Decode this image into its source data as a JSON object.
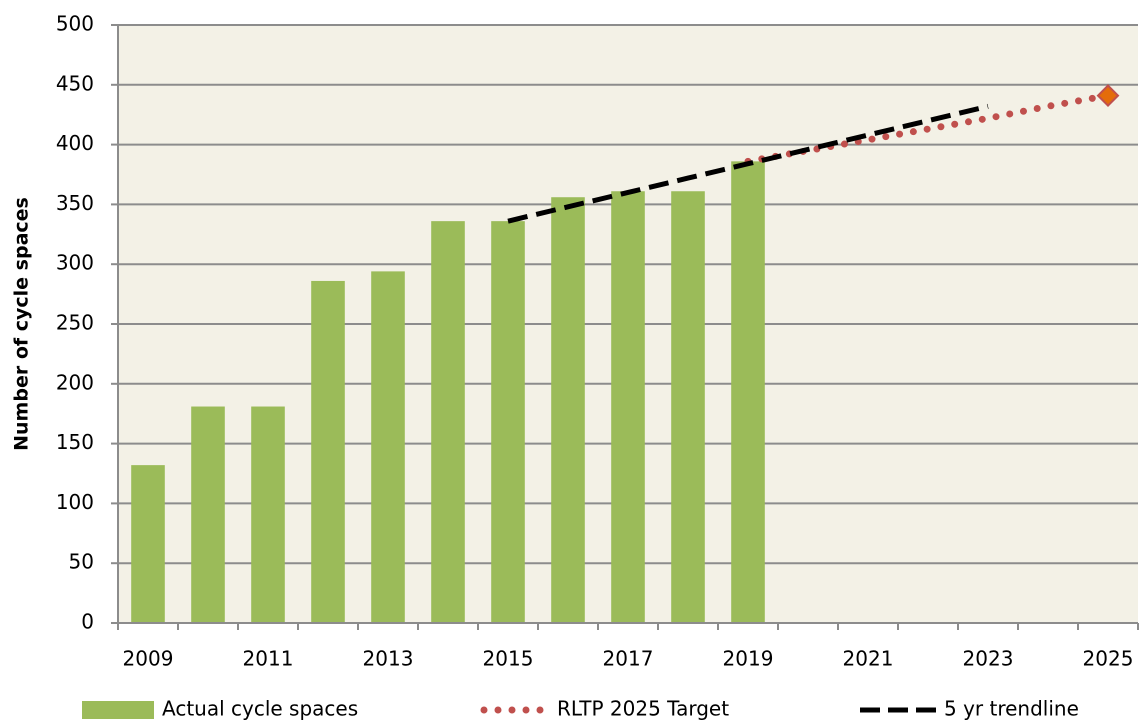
{
  "chart_data": {
    "type": "bar",
    "y_label": "Number of cycle spaces",
    "categories": [
      "2009",
      null,
      "2011",
      null,
      "2013",
      null,
      "2015",
      null,
      "2017",
      null,
      "2019",
      null,
      "2021",
      null,
      "2023",
      null,
      "2025"
    ],
    "series": [
      {
        "name": "Actual cycle spaces",
        "type": "bar",
        "color": "#9bbb59",
        "values": [
          132,
          181,
          181,
          286,
          294,
          336,
          336,
          356,
          361,
          361,
          386,
          null,
          null,
          null,
          null,
          null,
          null
        ]
      },
      {
        "name": "RLTP 2025 Target",
        "type": "line",
        "style": "dotted",
        "color": "#c0504d",
        "end_marker": "diamond",
        "marker_color": "#e46c0a",
        "values": [
          null,
          null,
          null,
          null,
          null,
          null,
          null,
          null,
          null,
          null,
          386,
          395,
          404,
          413,
          422,
          432,
          441
        ]
      },
      {
        "name": "5 yr trendline",
        "type": "line",
        "style": "dashed",
        "color": "#000000",
        "values": [
          null,
          null,
          null,
          null,
          null,
          null,
          336,
          348,
          360,
          372,
          384,
          396,
          408,
          420,
          432,
          null,
          null
        ]
      }
    ],
    "ylim": [
      0,
      500
    ],
    "yticks": [
      0,
      50,
      100,
      150,
      200,
      250,
      300,
      350,
      400,
      450,
      500
    ],
    "grid": true,
    "legend": "bottom"
  }
}
